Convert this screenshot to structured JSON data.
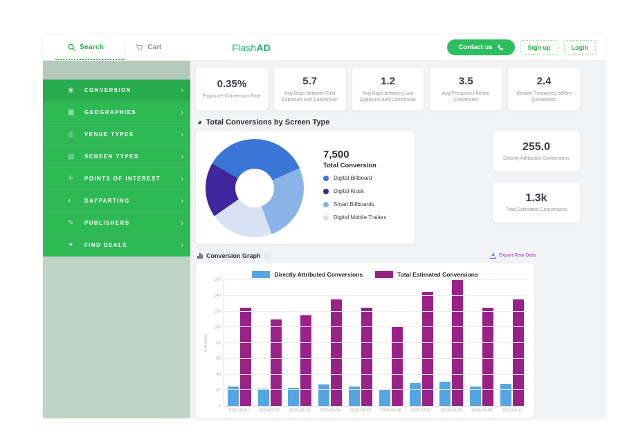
{
  "topbar": {
    "search_label": "Search",
    "cart_label": "Cart",
    "logo_flash": "Flash",
    "logo_ad": "AD",
    "contact_label": "Contact us",
    "signup_label": "Sign up",
    "login_label": "Login"
  },
  "sidebar": {
    "items": [
      {
        "label": "CONVERSION",
        "icon": "conversion-icon",
        "active": true
      },
      {
        "label": "GEOGRAPHIES",
        "icon": "geographies-icon",
        "active": false
      },
      {
        "label": "VENUE TYPES",
        "icon": "venue-types-icon",
        "active": false
      },
      {
        "label": "SCREEN TYPES",
        "icon": "screen-types-icon",
        "active": false
      },
      {
        "label": "POINTS OF INTEREST",
        "icon": "points-of-interest-icon",
        "active": false
      },
      {
        "label": "DAYPARTING",
        "icon": "dayparting-icon",
        "active": false
      },
      {
        "label": "PUBLISHERS",
        "icon": "publishers-icon",
        "active": false
      },
      {
        "label": "FIND DEALS",
        "icon": "find-deals-icon",
        "active": false
      }
    ]
  },
  "stats": [
    {
      "value": "0.35%",
      "label": "Exposure Conversion Rate"
    },
    {
      "value": "5.7",
      "label": "Avg Days between First Exposure and Conversion"
    },
    {
      "value": "1.2",
      "label": "Avg Days between Last Exposure and Conversion"
    },
    {
      "value": "3.5",
      "label": "Avg Frequency before Conversion"
    },
    {
      "value": "2.4",
      "label": "Median Frequency before Conversion"
    }
  ],
  "screen_type_section": {
    "title": "Total Conversions by Screen Type",
    "total_value": "7,500",
    "total_label": "Total Conversion"
  },
  "side_metrics": [
    {
      "value": "255.0",
      "label": "Directly Attributed Conversions"
    },
    {
      "value": "1.3k",
      "label": "Total Estimated Conversions"
    }
  ],
  "graph_section": {
    "title": "Conversion Graph",
    "export_label": "Export Raw Data"
  },
  "colors": {
    "brand_green": "#2eb955",
    "active_green": "#28ab4c",
    "bar_blue": "#55a5e2",
    "bar_purple": "#9a2187"
  },
  "chart_data": [
    {
      "type": "pie",
      "donut": true,
      "title": "Total Conversions by Screen Type",
      "total": 7500,
      "legend_position": "right",
      "slices": [
        {
          "label": "Digital Billboard",
          "percent": 35,
          "color": "#3a76d8"
        },
        {
          "label": "Digital Kiosk",
          "percent": 18,
          "color": "#41259c"
        },
        {
          "label": "Smart Billboards",
          "percent": 26,
          "color": "#8ab4e8"
        },
        {
          "label": "Digital Mobile Trailers",
          "percent": 21,
          "color": "#d7e3f4"
        }
      ],
      "draw_order_clockwise_from_top": [
        "Digital Billboard",
        "Smart Billboards",
        "Digital Mobile Trailers",
        "Digital Kiosk"
      ],
      "start_angle_deg": -60
    },
    {
      "type": "bar",
      "title": "Conversion Graph",
      "categories": [
        "2020-03-01",
        "2020-03-02",
        "2020-03-03",
        "2020-03-04",
        "2020-03-05",
        "2020-03-06",
        "2020-03-07",
        "2020-03-08",
        "2020-03-09",
        "2020-03-10"
      ],
      "series": [
        {
          "name": "Directly Attributed Conversions",
          "color": "#55a5e2",
          "values": [
            25,
            22,
            23,
            27,
            25,
            20,
            29,
            31,
            25,
            28
          ]
        },
        {
          "name": "Total Estimated Conversions",
          "color": "#9a2187",
          "values": [
            125,
            110,
            115,
            135,
            125,
            100,
            145,
            160,
            125,
            135
          ]
        }
      ],
      "xlabel": "",
      "ylabel": "# of Conv",
      "ylim": [
        0,
        160
      ],
      "yticks": [
        0,
        20,
        40,
        60,
        80,
        100,
        120,
        140,
        160
      ],
      "grid": true,
      "legend_position": "top"
    }
  ]
}
